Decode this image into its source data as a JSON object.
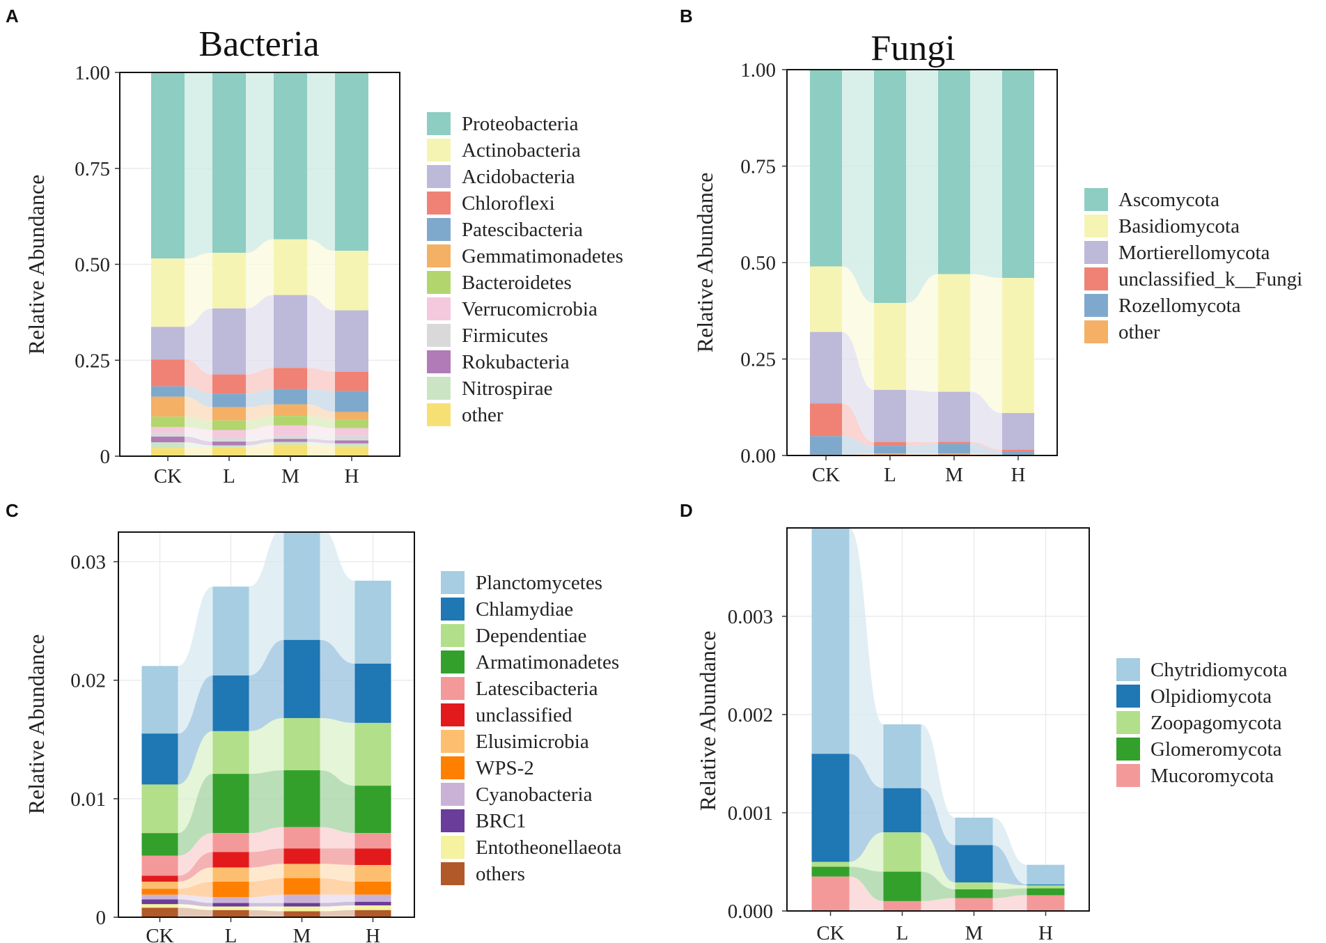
{
  "figure": {
    "panels": [
      "A",
      "B",
      "C",
      "D"
    ]
  },
  "chart_data": [
    {
      "panel": "A",
      "type": "bar",
      "stacked": true,
      "title": "Bacteria",
      "xlabel": "",
      "ylabel": "Relative Abundance",
      "categories": [
        "CK",
        "L",
        "M",
        "H"
      ],
      "ylim": [
        0,
        1
      ],
      "yticks": [
        0,
        0.25,
        0.5,
        0.75,
        1.0
      ],
      "ytick_labels": [
        "0",
        "0.25",
        "0.50",
        "0.75",
        "1.00"
      ],
      "legend_position": "right",
      "series": [
        {
          "name": "Proteobacteria",
          "color": "#8ecdc1",
          "values": [
            0.485,
            0.47,
            0.435,
            0.465
          ]
        },
        {
          "name": "Actinobacteria",
          "color": "#f6f4b3",
          "values": [
            0.178,
            0.145,
            0.145,
            0.155
          ]
        },
        {
          "name": "Acidobacteria",
          "color": "#bcb9d9",
          "values": [
            0.085,
            0.172,
            0.19,
            0.16
          ]
        },
        {
          "name": "Chloroflexi",
          "color": "#ef8275",
          "values": [
            0.07,
            0.05,
            0.055,
            0.05
          ]
        },
        {
          "name": "Patescibacteria",
          "color": "#7fa9cc",
          "values": [
            0.027,
            0.035,
            0.04,
            0.055
          ]
        },
        {
          "name": "Gemmatimonadetes",
          "color": "#f4b064",
          "values": [
            0.052,
            0.035,
            0.03,
            0.02
          ]
        },
        {
          "name": "Bacteroidetes",
          "color": "#b2d56e",
          "values": [
            0.027,
            0.025,
            0.025,
            0.022
          ]
        },
        {
          "name": "Verrucomicrobia",
          "color": "#f4c9dd",
          "values": [
            0.015,
            0.02,
            0.025,
            0.02
          ]
        },
        {
          "name": "Firmicutes",
          "color": "#d9d9d9",
          "values": [
            0.01,
            0.01,
            0.01,
            0.012
          ]
        },
        {
          "name": "Rokubacteria",
          "color": "#b07bb6",
          "values": [
            0.015,
            0.01,
            0.008,
            0.008
          ]
        },
        {
          "name": "Nitrospirae",
          "color": "#cbe5c4",
          "values": [
            0.015,
            0.006,
            0.007,
            0.008
          ]
        },
        {
          "name": "other",
          "color": "#f7e073",
          "values": [
            0.021,
            0.022,
            0.03,
            0.025
          ]
        }
      ]
    },
    {
      "panel": "B",
      "type": "bar",
      "stacked": true,
      "title": "Fungi",
      "xlabel": "",
      "ylabel": "Relative Abundance",
      "categories": [
        "CK",
        "L",
        "M",
        "H"
      ],
      "ylim": [
        0,
        1
      ],
      "yticks": [
        0,
        0.25,
        0.5,
        0.75,
        1.0
      ],
      "ytick_labels": [
        "0.00",
        "0.25",
        "0.50",
        "0.75",
        "1.00"
      ],
      "legend_position": "right",
      "series": [
        {
          "name": "Ascomycota",
          "color": "#8ecdc1",
          "values": [
            0.51,
            0.605,
            0.53,
            0.54
          ]
        },
        {
          "name": "Basidiomycota",
          "color": "#f6f4b3",
          "values": [
            0.17,
            0.225,
            0.305,
            0.35
          ]
        },
        {
          "name": "Mortierellomycota",
          "color": "#bcb9d9",
          "values": [
            0.185,
            0.135,
            0.13,
            0.095
          ]
        },
        {
          "name": "unclassified_k__Fungi",
          "color": "#ef8275",
          "values": [
            0.085,
            0.01,
            0.005,
            0.005
          ]
        },
        {
          "name": "Rozellomycota",
          "color": "#7fa9cc",
          "values": [
            0.048,
            0.02,
            0.025,
            0.008
          ]
        },
        {
          "name": "other",
          "color": "#f4b064",
          "values": [
            0.002,
            0.005,
            0.005,
            0.002
          ]
        }
      ]
    },
    {
      "panel": "C",
      "type": "bar",
      "stacked": true,
      "title": "",
      "xlabel": "",
      "ylabel": "Relative Abundance",
      "categories": [
        "CK",
        "L",
        "M",
        "H"
      ],
      "ylim": [
        0,
        0.0325
      ],
      "yticks": [
        0,
        0.01,
        0.02,
        0.03
      ],
      "ytick_labels": [
        "0",
        "0.01",
        "0.02",
        "0.03"
      ],
      "legend_position": "right",
      "series": [
        {
          "name": "Planctomycetes",
          "color": "#a6cde2",
          "values": [
            0.0057,
            0.0075,
            0.0095,
            0.007
          ]
        },
        {
          "name": "Chlamydiae",
          "color": "#1f77b4",
          "values": [
            0.0043,
            0.0047,
            0.0066,
            0.005
          ]
        },
        {
          "name": "Dependentiae",
          "color": "#b2df8a",
          "values": [
            0.0041,
            0.0036,
            0.0044,
            0.0053
          ]
        },
        {
          "name": "Armatimonadetes",
          "color": "#33a02c",
          "values": [
            0.0019,
            0.005,
            0.0048,
            0.004
          ]
        },
        {
          "name": "Latescibacteria",
          "color": "#f4999a",
          "values": [
            0.0017,
            0.0016,
            0.0018,
            0.0013
          ]
        },
        {
          "name": "unclassified",
          "color": "#e31a1c",
          "values": [
            0.0005,
            0.0013,
            0.0013,
            0.0014
          ]
        },
        {
          "name": "Elusimicrobia",
          "color": "#fdbf6f",
          "values": [
            0.0006,
            0.0012,
            0.0012,
            0.0014
          ]
        },
        {
          "name": "WPS-2",
          "color": "#ff7f00",
          "values": [
            0.0005,
            0.0013,
            0.0014,
            0.0011
          ]
        },
        {
          "name": "Cyanobacteria",
          "color": "#cab2d6",
          "values": [
            0.0004,
            0.0005,
            0.0007,
            0.0006
          ]
        },
        {
          "name": "BRC1",
          "color": "#6a3d9a",
          "values": [
            0.0004,
            0.0003,
            0.0003,
            0.0003
          ]
        },
        {
          "name": "Entotheonellaeota",
          "color": "#f5f2a0",
          "values": [
            0.0003,
            0.0003,
            0.0004,
            0.0004
          ]
        },
        {
          "name": "others",
          "color": "#b15928",
          "values": [
            0.0008,
            0.0006,
            0.0005,
            0.0006
          ]
        }
      ]
    },
    {
      "panel": "D",
      "type": "bar",
      "stacked": true,
      "title": "",
      "xlabel": "",
      "ylabel": "Relative Abundance",
      "categories": [
        "CK",
        "L",
        "M",
        "H"
      ],
      "ylim": [
        0,
        0.0039
      ],
      "yticks": [
        0,
        0.001,
        0.002,
        0.003
      ],
      "ytick_labels": [
        "0.000",
        "0.001",
        "0.002",
        "0.003"
      ],
      "legend_position": "right",
      "series": [
        {
          "name": "Chytridiomycota",
          "color": "#a6cde2",
          "values": [
            0.0023,
            0.00065,
            0.00028,
            0.0002
          ]
        },
        {
          "name": "Olpidiomycota",
          "color": "#1f77b4",
          "values": [
            0.0011,
            0.00045,
            0.00038,
            1e-05
          ]
        },
        {
          "name": "Zoopagomycota",
          "color": "#b2df8a",
          "values": [
            5e-05,
            0.0004,
            7e-05,
            3e-05
          ]
        },
        {
          "name": "Glomeromycota",
          "color": "#33a02c",
          "values": [
            0.0001,
            0.0003,
            9e-05,
            7e-05
          ]
        },
        {
          "name": "Mucoromycota",
          "color": "#f4999a",
          "values": [
            0.00035,
            0.0001,
            0.00013,
            0.00016
          ]
        }
      ]
    }
  ]
}
